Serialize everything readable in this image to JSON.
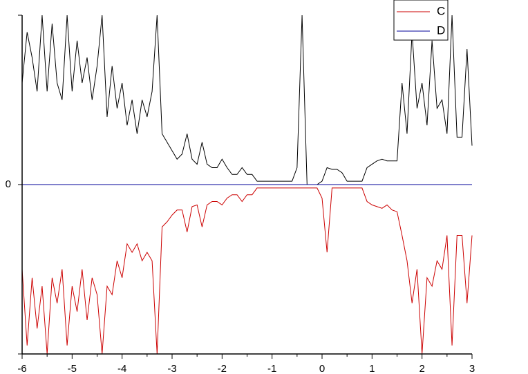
{
  "chart_data": {
    "type": "line",
    "x": [
      -6,
      -5.9,
      -5.8,
      -5.7,
      -5.6,
      -5.5,
      -5.4,
      -5.3,
      -5.2,
      -5.1,
      -5,
      -4.9,
      -4.8,
      -4.7,
      -4.6,
      -4.5,
      -4.4,
      -4.3,
      -4.2,
      -4.1,
      -4,
      -3.9,
      -3.8,
      -3.7,
      -3.6,
      -3.5,
      -3.4,
      -3.3,
      -3.2,
      -3.1,
      -3,
      -2.9,
      -2.8,
      -2.7,
      -2.6,
      -2.5,
      -2.4,
      -2.3,
      -2.2,
      -2.1,
      -2,
      -1.9,
      -1.8,
      -1.7,
      -1.6,
      -1.5,
      -1.4,
      -1.3,
      -1.2,
      -1.1,
      -1,
      -0.9,
      -0.8,
      -0.7,
      -0.6,
      -0.5,
      -0.4,
      -0.3,
      -0.2,
      -0.1,
      0,
      0.1,
      0.2,
      0.3,
      0.4,
      0.5,
      0.6,
      0.7,
      0.8,
      0.9,
      1,
      1.1,
      1.2,
      1.3,
      1.4,
      1.5,
      1.6,
      1.7,
      1.8,
      1.9,
      2,
      2.1,
      2.2,
      2.3,
      2.4,
      2.5,
      2.6,
      2.7,
      2.8,
      2.9,
      3
    ],
    "series": [
      {
        "color": "#000000",
        "values": [
          0.6,
          0.9,
          0.75,
          0.55,
          1,
          0.55,
          0.95,
          0.6,
          0.5,
          1,
          0.55,
          0.85,
          0.6,
          0.75,
          0.5,
          0.7,
          1,
          0.4,
          0.7,
          0.45,
          0.6,
          0.35,
          0.5,
          0.3,
          0.5,
          0.4,
          0.55,
          1,
          0.3,
          0.25,
          0.2,
          0.15,
          0.18,
          0.3,
          0.15,
          0.12,
          0.25,
          0.12,
          0.1,
          0.1,
          0.15,
          0.1,
          0.06,
          0.06,
          0.1,
          0.06,
          0.06,
          0.02,
          0.02,
          0.02,
          0.02,
          0.02,
          0.02,
          0.02,
          0.02,
          0.1,
          1,
          0,
          0,
          0,
          0.02,
          0.1,
          0.09,
          0.09,
          0.07,
          0.02,
          0.02,
          0.02,
          0.02,
          0.1,
          0.12,
          0.14,
          0.15,
          0.14,
          0.14,
          0.14,
          0.6,
          0.3,
          0.9,
          0.45,
          0.6,
          0.35,
          0.85,
          0.45,
          0.5,
          0.3,
          1,
          0.28,
          0.28,
          0.8,
          0.23
        ]
      },
      {
        "name": "C",
        "color": "#cc0000",
        "values": [
          -0.5,
          -0.95,
          -0.55,
          -0.85,
          -0.6,
          -1,
          -0.55,
          -0.7,
          -0.5,
          -0.95,
          -0.6,
          -0.75,
          -0.5,
          -0.8,
          -0.55,
          -0.65,
          -1,
          -0.6,
          -0.65,
          -0.45,
          -0.55,
          -0.35,
          -0.4,
          -0.35,
          -0.45,
          -0.4,
          -0.45,
          -1,
          -0.25,
          -0.22,
          -0.18,
          -0.15,
          -0.15,
          -0.28,
          -0.13,
          -0.12,
          -0.25,
          -0.12,
          -0.1,
          -0.1,
          -0.12,
          -0.08,
          -0.06,
          -0.06,
          -0.1,
          -0.06,
          -0.06,
          -0.02,
          -0.02,
          -0.02,
          -0.02,
          -0.02,
          -0.02,
          -0.02,
          -0.02,
          -0.02,
          -0.02,
          -0.02,
          -0.02,
          -0.02,
          -0.08,
          -0.4,
          -0.02,
          -0.02,
          -0.02,
          -0.02,
          -0.02,
          -0.02,
          -0.02,
          -0.1,
          -0.12,
          -0.13,
          -0.14,
          -0.12,
          -0.15,
          -0.16,
          -0.3,
          -0.45,
          -0.7,
          -0.5,
          -1,
          -0.55,
          -0.6,
          -0.45,
          -0.5,
          -0.3,
          -0.95,
          -0.3,
          -0.3,
          -0.7,
          -0.3
        ]
      },
      {
        "name": "D",
        "color": "#000099",
        "values": [
          0,
          0,
          0,
          0,
          0,
          0,
          0,
          0,
          0,
          0,
          0,
          0,
          0,
          0,
          0,
          0,
          0,
          0,
          0,
          0,
          0,
          0,
          0,
          0,
          0,
          0,
          0,
          0,
          0,
          0,
          0,
          0,
          0,
          0,
          0,
          0,
          0,
          0,
          0,
          0,
          0,
          0,
          0,
          0,
          0,
          0,
          0,
          0,
          0,
          0,
          0,
          0,
          0,
          0,
          0,
          0,
          0,
          0,
          0,
          0,
          0,
          0,
          0,
          0,
          0,
          0,
          0,
          0,
          0,
          0,
          0,
          0,
          0,
          0,
          0,
          0,
          0,
          0,
          0,
          0,
          0,
          0,
          0,
          0,
          0,
          0,
          0,
          0,
          0,
          0,
          0
        ]
      }
    ],
    "xlim": [
      -6,
      3
    ],
    "xticks": [
      -6,
      -5,
      -4,
      -3,
      -2,
      -1,
      0,
      1,
      2,
      3
    ],
    "ylim": [
      -1,
      1
    ],
    "yticks": [
      0
    ],
    "legend": "upper right",
    "grid": false
  }
}
